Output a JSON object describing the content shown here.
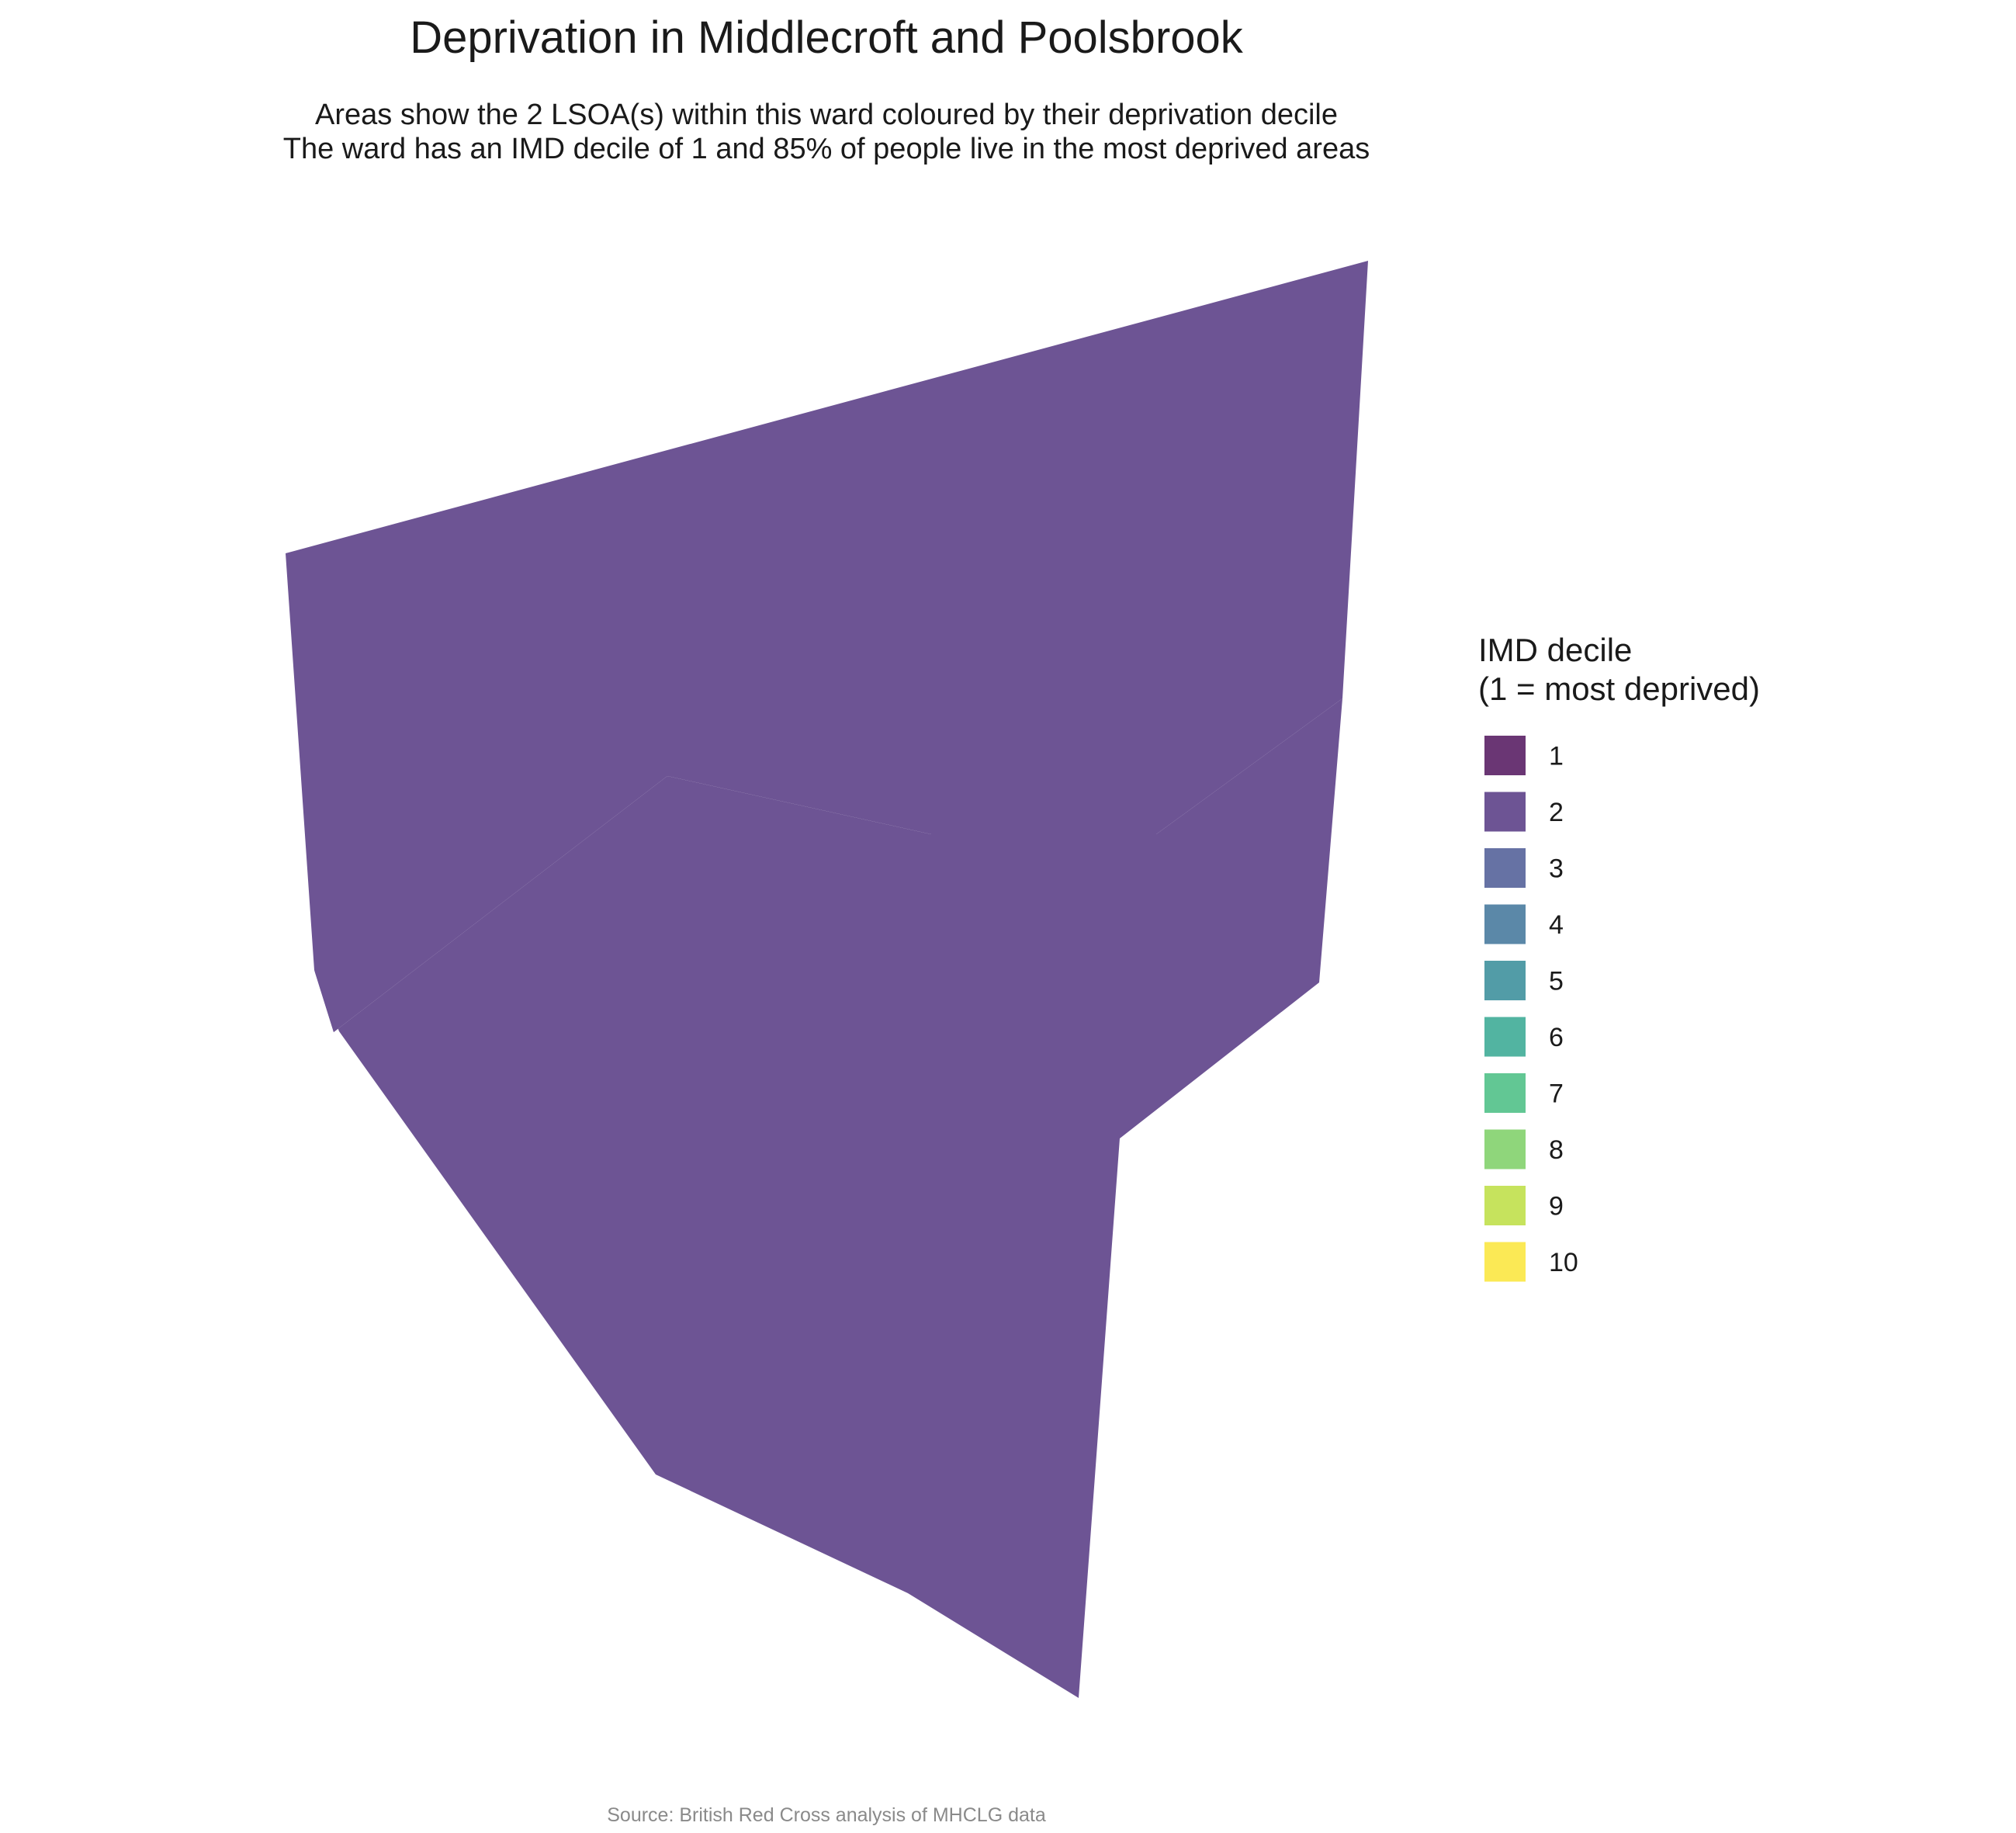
{
  "title": "Deprivation in Middlecroft and Poolsbrook",
  "subtitle_lines": [
    "Areas show the 2 LSOA(s) within this ward coloured by their deprivation decile",
    "The ward has an IMD decile of 1 and 85% of people live in the most deprived areas"
  ],
  "caption": "Source: British Red Cross analysis of MHCLG data",
  "legend": {
    "title_lines": [
      "IMD decile",
      "(1 = most deprived)"
    ],
    "items": [
      {
        "label": "1",
        "color": "#6a3674"
      },
      {
        "label": "2",
        "color": "#6d5494"
      },
      {
        "label": "3",
        "color": "#6672a4"
      },
      {
        "label": "4",
        "color": "#5b88a8"
      },
      {
        "label": "5",
        "color": "#529ca7"
      },
      {
        "label": "6",
        "color": "#52b4a1"
      },
      {
        "label": "7",
        "color": "#62c794"
      },
      {
        "label": "8",
        "color": "#8fd67b"
      },
      {
        "label": "9",
        "color": "#c6e35d"
      },
      {
        "label": "10",
        "color": "#fbe955"
      }
    ]
  },
  "map": {
    "areas": [
      {
        "id": "lsoa-a",
        "imd_decile": 2,
        "color": "#6d5494"
      },
      {
        "id": "lsoa-b",
        "imd_decile": 2,
        "color": "#6d5494"
      }
    ]
  }
}
